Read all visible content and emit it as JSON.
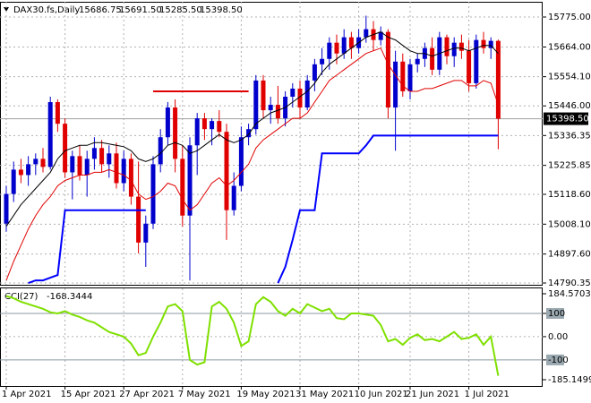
{
  "chart_data": {
    "type": "candlestick",
    "title": "DAX30.fs,Daily",
    "header_values": [
      "15686.75",
      "15691.50",
      "15285.50",
      "15398.50"
    ],
    "categories": [
      "1 Apr 2021",
      null,
      null,
      null,
      null,
      null,
      null,
      null,
      "15 Apr 2021",
      null,
      null,
      null,
      null,
      null,
      null,
      null,
      "27 Apr 2021",
      null,
      null,
      null,
      null,
      null,
      null,
      null,
      "7 May 2021",
      null,
      null,
      null,
      null,
      null,
      null,
      null,
      "19 May 2021",
      null,
      null,
      null,
      null,
      null,
      null,
      null,
      "31 May 2021",
      null,
      null,
      null,
      null,
      null,
      null,
      null,
      "10 Jun 2021",
      null,
      null,
      null,
      null,
      null,
      null,
      "21 Jun 2021",
      null,
      null,
      null,
      null,
      null,
      null,
      null,
      "1 Jul 2021",
      null,
      null,
      null,
      null
    ],
    "candles": {
      "open": [
        15010,
        15120,
        15210,
        15190,
        15230,
        15250,
        15220,
        15460,
        15380,
        15200,
        15260,
        15190,
        15250,
        15290,
        15230,
        15270,
        15160,
        15250,
        15110,
        14940,
        15010,
        15230,
        15330,
        15440,
        15250,
        15040,
        15300,
        15400,
        15360,
        15390,
        15350,
        15060,
        15150,
        15330,
        15360,
        15540,
        15430,
        15450,
        15400,
        15480,
        15510,
        15440,
        15540,
        15600,
        15620,
        15680,
        15640,
        15700,
        15660,
        15700,
        15730,
        15690,
        15720,
        15440,
        15610,
        15500,
        15600,
        15620,
        15660,
        15580,
        15700,
        15630,
        15680,
        15650,
        15530,
        15690,
        15660,
        15686.75
      ],
      "high": [
        15150,
        15240,
        15250,
        15260,
        15270,
        15290,
        15480,
        15470,
        15400,
        15280,
        15300,
        15280,
        15330,
        15320,
        15300,
        15310,
        15280,
        15270,
        15240,
        15040,
        15260,
        15360,
        15460,
        15470,
        15300,
        15330,
        15420,
        15420,
        15400,
        15430,
        15380,
        15200,
        15370,
        15380,
        15560,
        15560,
        15480,
        15520,
        15500,
        15530,
        15540,
        15560,
        15620,
        15660,
        15700,
        15710,
        15730,
        15720,
        15730,
        15780,
        15760,
        15740,
        15730,
        15650,
        15640,
        15620,
        15640,
        15680,
        15700,
        15720,
        15710,
        15700,
        15710,
        15690,
        15710,
        15720,
        15700,
        15691.5
      ],
      "low": [
        14980,
        15090,
        15160,
        15150,
        15190,
        15200,
        15210,
        15350,
        15180,
        15100,
        15170,
        15110,
        15210,
        15200,
        15180,
        15140,
        15130,
        15080,
        14900,
        14850,
        14990,
        15200,
        15300,
        15200,
        15000,
        14800,
        15190,
        15320,
        15300,
        15330,
        14950,
        15040,
        15130,
        15300,
        15340,
        15400,
        15380,
        15380,
        15370,
        15440,
        15400,
        15430,
        15500,
        15560,
        15580,
        15600,
        15620,
        15620,
        15640,
        15680,
        15650,
        15670,
        15400,
        15280,
        15480,
        15470,
        15570,
        15590,
        15560,
        15560,
        15600,
        15590,
        15620,
        15500,
        15510,
        15640,
        15620,
        15285.5
      ],
      "close": [
        15120,
        15210,
        15190,
        15230,
        15250,
        15220,
        15460,
        15380,
        15200,
        15260,
        15190,
        15250,
        15290,
        15230,
        15270,
        15160,
        15250,
        15110,
        14940,
        15010,
        15230,
        15330,
        15440,
        15250,
        15040,
        15300,
        15400,
        15360,
        15390,
        15350,
        15060,
        15150,
        15330,
        15360,
        15540,
        15430,
        15450,
        15400,
        15480,
        15510,
        15440,
        15540,
        15600,
        15620,
        15680,
        15640,
        15700,
        15660,
        15700,
        15730,
        15690,
        15720,
        15440,
        15610,
        15500,
        15600,
        15620,
        15660,
        15580,
        15700,
        15630,
        15680,
        15650,
        15530,
        15690,
        15660,
        15686.75,
        15398.5
      ],
      "up_color": "#0000cd",
      "down_color": "#e00000"
    },
    "lines": [
      {
        "color": "#000000",
        "values": [
          15000,
          15040,
          15080,
          15110,
          15140,
          15170,
          15200,
          15250,
          15280,
          15290,
          15300,
          15300,
          15310,
          15310,
          15305,
          15300,
          15295,
          15280,
          15250,
          15240,
          15250,
          15270,
          15300,
          15310,
          15300,
          15270,
          15280,
          15300,
          15320,
          15340,
          15320,
          15310,
          15320,
          15340,
          15380,
          15400,
          15420,
          15430,
          15440,
          15460,
          15480,
          15500,
          15530,
          15570,
          15600,
          15620,
          15640,
          15660,
          15680,
          15700,
          15710,
          15720,
          15700,
          15690,
          15670,
          15650,
          15640,
          15640,
          15630,
          15640,
          15650,
          15660,
          15660,
          15650,
          15660,
          15670,
          15670,
          15640
        ]
      },
      {
        "color": "#e00000",
        "values": [
          14800,
          14870,
          14930,
          14990,
          15040,
          15080,
          15110,
          15150,
          15170,
          15180,
          15190,
          15190,
          15200,
          15200,
          15210,
          15200,
          15190,
          15170,
          15120,
          15100,
          15110,
          15130,
          15160,
          15150,
          15100,
          15060,
          15080,
          15120,
          15160,
          15180,
          15150,
          15170,
          15200,
          15230,
          15290,
          15320,
          15340,
          15360,
          15380,
          15400,
          15400,
          15420,
          15460,
          15500,
          15540,
          15560,
          15580,
          15600,
          15620,
          15640,
          15650,
          15660,
          15600,
          15560,
          15520,
          15500,
          15500,
          15510,
          15510,
          15520,
          15530,
          15540,
          15540,
          15520,
          15520,
          15540,
          15530,
          15450
        ]
      },
      {
        "color": "#0000ff",
        "values": [
          null,
          null,
          null,
          14790,
          14800,
          14800,
          14810,
          14820,
          15060,
          15060,
          15060,
          15060,
          15060,
          15060,
          15060,
          15060,
          15060,
          15060,
          15060,
          15060,
          null,
          null,
          null,
          null,
          null,
          null,
          null,
          null,
          null,
          null,
          null,
          null,
          null,
          null,
          null,
          null,
          null,
          14790,
          14850,
          14950,
          15060,
          15060,
          15060,
          15270,
          15270,
          15270,
          15270,
          15270,
          15270,
          15300,
          15336,
          15336,
          15336,
          15336,
          15336,
          15336,
          15336,
          15336,
          15336,
          15336,
          15336,
          15336,
          15336,
          15336,
          15336,
          15336,
          15336,
          15336
        ]
      }
    ],
    "level": {
      "value": 15500,
      "from": 20,
      "to": 33,
      "color": "#e00000"
    },
    "current_price": {
      "value": 15398.5,
      "label": "15398.50"
    },
    "ylim": [
      14783.7,
      15831.4
    ],
    "yticks": [
      {
        "value": 15775,
        "label": "15775.00"
      },
      {
        "value": 15664,
        "label": "15664.00"
      },
      {
        "value": 15554.1,
        "label": "15554.10"
      },
      {
        "value": 15446,
        "label": "15446.00"
      },
      {
        "value": 15336.35,
        "label": "15336.35"
      },
      {
        "value": 15225.85,
        "label": "15225.85"
      },
      {
        "value": 15118.6,
        "label": "15118.60"
      },
      {
        "value": 15008.1,
        "label": "15008.10"
      },
      {
        "value": 14897.6,
        "label": "14897.60"
      },
      {
        "value": 14790.35,
        "label": "14790.35"
      }
    ],
    "cci": {
      "title": "CCI(27)",
      "color": "#7fe000",
      "values": [
        175,
        165,
        150,
        140,
        130,
        120,
        105,
        100,
        110,
        95,
        85,
        70,
        60,
        40,
        20,
        10,
        0,
        -30,
        -80,
        -70,
        0,
        60,
        130,
        140,
        110,
        -100,
        -120,
        -110,
        130,
        150,
        120,
        60,
        -40,
        -20,
        140,
        170,
        150,
        110,
        90,
        120,
        100,
        140,
        125,
        110,
        120,
        80,
        75,
        100,
        100,
        95,
        90,
        50,
        -20,
        -10,
        -35,
        -5,
        10,
        -15,
        -10,
        -20,
        0,
        20,
        -10,
        -5,
        10,
        -35,
        0,
        -168.3444
      ],
      "ylim": [
        -185.1499,
        184.5703
      ],
      "yticks": [
        184.5703,
        100,
        {
          "value": 0,
          "label": "0.00"
        },
        -100,
        -185.1499
      ],
      "levels": [
        100,
        -100
      ]
    }
  }
}
